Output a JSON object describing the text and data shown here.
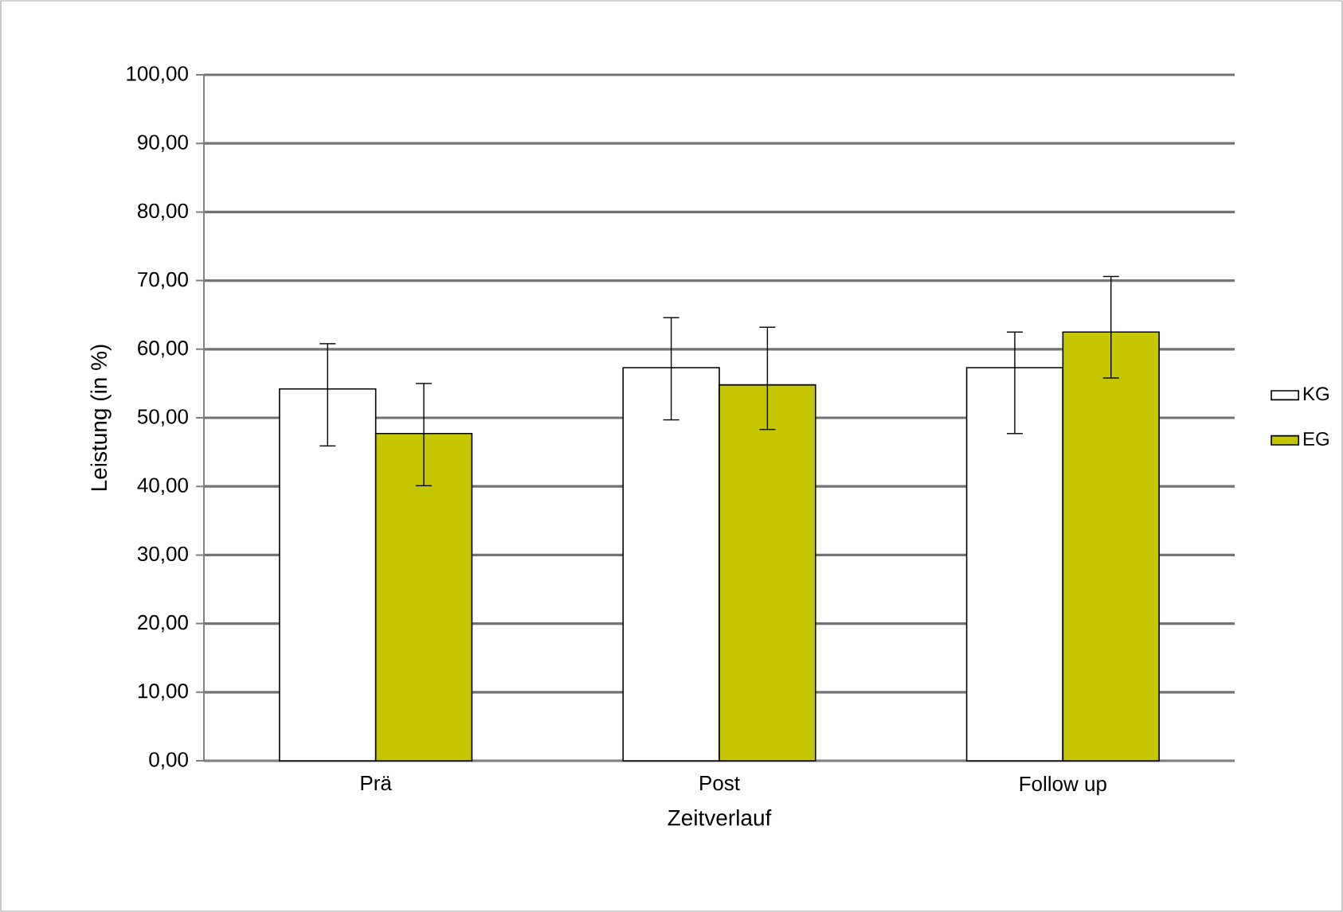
{
  "chart_data": {
    "type": "bar",
    "xlabel": "Zeitverlauf",
    "ylabel": "Leistung (in %)",
    "categories": [
      "Prä",
      "Post",
      "Follow up"
    ],
    "series": [
      {
        "name": "KG",
        "color": "#ffffff",
        "values": [
          54.2,
          57.3,
          57.3
        ],
        "errors": [
          [
            45.9,
            60.8
          ],
          [
            49.7,
            64.6
          ],
          [
            47.7,
            62.5
          ]
        ]
      },
      {
        "name": "EG",
        "color": "#c5c500",
        "values": [
          47.7,
          54.8,
          62.5
        ],
        "errors": [
          [
            40.1,
            55.0
          ],
          [
            48.3,
            63.2
          ],
          [
            55.8,
            70.6
          ]
        ]
      }
    ],
    "ylim": [
      0,
      100
    ],
    "yticks": [
      {
        "value": 0,
        "label": "0,00"
      },
      {
        "value": 10,
        "label": "10,00"
      },
      {
        "value": 20,
        "label": "20,00"
      },
      {
        "value": 30,
        "label": "30,00"
      },
      {
        "value": 40,
        "label": "40,00"
      },
      {
        "value": 50,
        "label": "50,00"
      },
      {
        "value": 60,
        "label": "60,00"
      },
      {
        "value": 70,
        "label": "70,00"
      },
      {
        "value": 80,
        "label": "80,00"
      },
      {
        "value": 90,
        "label": "90,00"
      },
      {
        "value": 100,
        "label": "100,00"
      }
    ],
    "grid": "y",
    "legend": "right"
  }
}
